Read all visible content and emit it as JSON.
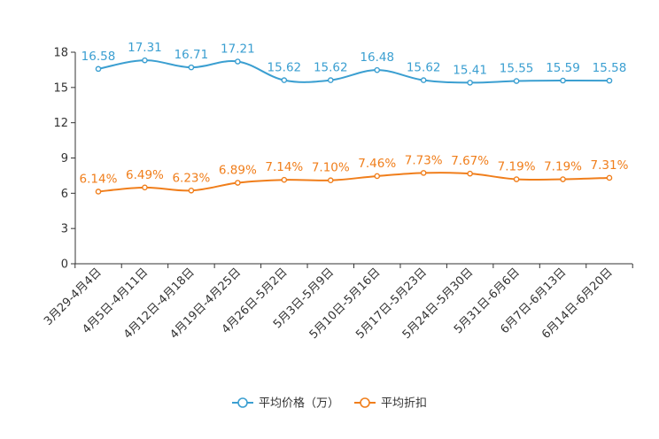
{
  "chart_data": {
    "type": "line",
    "title": "",
    "xlabel": "",
    "ylabel": "",
    "ylim": [
      0,
      18
    ],
    "yticks": [
      0,
      3,
      6,
      9,
      12,
      15,
      18
    ],
    "grid": false,
    "legend_position": "bottom-center",
    "categories": [
      "3月29-4月4日",
      "4月5日-4月11日",
      "4月12日-4月18日",
      "4月19日-4月25日",
      "4月26日-5月2日",
      "5月3日-5月9日",
      "5月10日-5月16日",
      "5月17日-5月23日",
      "5月24日-5月30日",
      "5月31日-6月6日",
      "6月7日-6月13日",
      "6月14日-6月20日"
    ],
    "series": [
      {
        "name": "平均价格（万）",
        "color": "#3b9fd1",
        "values": [
          16.58,
          17.31,
          16.71,
          17.21,
          15.62,
          15.62,
          16.48,
          15.62,
          15.41,
          15.55,
          15.59,
          15.58
        ],
        "labels": [
          "16.58",
          "17.31",
          "16.71",
          "17.21",
          "15.62",
          "15.62",
          "16.48",
          "15.62",
          "15.41",
          "15.55",
          "15.59",
          "15.58"
        ]
      },
      {
        "name": "平均折扣",
        "color": "#f07e1b",
        "values": [
          6.14,
          6.49,
          6.23,
          6.89,
          7.14,
          7.1,
          7.46,
          7.73,
          7.67,
          7.19,
          7.19,
          7.31
        ],
        "labels": [
          "6.14%",
          "6.49%",
          "6.23%",
          "6.89%",
          "7.14%",
          "7.10%",
          "7.46%",
          "7.73%",
          "7.67%",
          "7.19%",
          "7.19%",
          "7.31%"
        ]
      }
    ]
  }
}
